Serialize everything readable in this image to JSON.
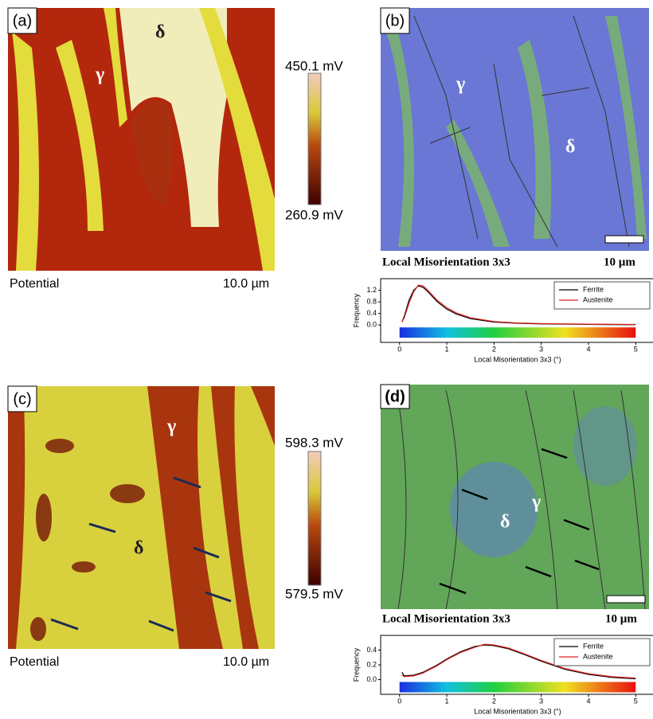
{
  "panels": [
    {
      "label": "(a)",
      "gamma": "γ",
      "delta": "δ",
      "colorbar": {
        "max": "450.1 mV",
        "min": "260.9 mV"
      },
      "caption": "Potential",
      "scale": "10.0 µm"
    },
    {
      "label": "(b)",
      "gamma": "γ",
      "delta": "δ",
      "caption": "Local Misorientation  3x3",
      "scale": "10 µm"
    },
    {
      "label": "(c)",
      "gamma": "γ",
      "delta": "δ",
      "colorbar": {
        "max": "598.3 mV",
        "min": "579.5 mV"
      },
      "caption": "Potential",
      "scale": "10.0 µm"
    },
    {
      "label": "(d)",
      "gamma": "γ",
      "delta": "δ",
      "caption": "Local Misorientation  3x3",
      "scale": "10 µm"
    }
  ],
  "chart_data": [
    {
      "type": "line",
      "ylabel": "Frequency",
      "xlabel": "Local Misorientation 3x3 (°)",
      "x": [
        0.05,
        0.1,
        0.2,
        0.3,
        0.4,
        0.5,
        0.6,
        0.8,
        1.0,
        1.2,
        1.5,
        2,
        2.5,
        3,
        4,
        5
      ],
      "series": [
        {
          "name": "Ferrite",
          "color": "#000000",
          "values": [
            0.1,
            0.3,
            0.85,
            1.2,
            1.35,
            1.3,
            1.15,
            0.8,
            0.55,
            0.38,
            0.22,
            0.1,
            0.06,
            0.04,
            0.02,
            0.01
          ]
        },
        {
          "name": "Austenite",
          "color": "#e02020",
          "values": [
            0.1,
            0.25,
            0.75,
            1.15,
            1.38,
            1.35,
            1.2,
            0.85,
            0.6,
            0.42,
            0.25,
            0.12,
            0.07,
            0.05,
            0.03,
            0.02
          ]
        }
      ],
      "xlim": [
        -0.4,
        5.4
      ],
      "ylim": [
        -0.6,
        1.6
      ],
      "xticks": [
        0,
        1,
        2,
        3,
        4,
        5
      ],
      "yticks": [
        {
          "value": 0,
          "label": "0.0"
        },
        0.4,
        0.8,
        1.2
      ],
      "legend": "upper right"
    },
    {
      "type": "line",
      "ylabel": "Frequency",
      "xlabel": "Local Misorientation 3x3 (°)",
      "x": [
        0.05,
        0.1,
        0.3,
        0.5,
        0.8,
        1,
        1.3,
        1.6,
        1.8,
        2,
        2.3,
        2.6,
        3,
        3.5,
        4,
        4.5,
        5
      ],
      "series": [
        {
          "name": "Ferrite",
          "color": "#000000",
          "values": [
            0.1,
            0.05,
            0.06,
            0.1,
            0.2,
            0.28,
            0.38,
            0.45,
            0.47,
            0.46,
            0.42,
            0.35,
            0.25,
            0.14,
            0.07,
            0.03,
            0.01
          ]
        },
        {
          "name": "Austenite",
          "color": "#e02020",
          "values": [
            0.06,
            0.04,
            0.05,
            0.09,
            0.19,
            0.27,
            0.37,
            0.44,
            0.48,
            0.47,
            0.43,
            0.36,
            0.26,
            0.15,
            0.08,
            0.04,
            0.02
          ]
        }
      ],
      "xlim": [
        -0.4,
        5.4
      ],
      "ylim": [
        -0.2,
        0.6
      ],
      "xticks": [
        0,
        1,
        2,
        3,
        4,
        5
      ],
      "yticks": [
        {
          "value": 0,
          "label": "0.0"
        },
        0.2,
        0.4
      ],
      "legend": "upper right"
    }
  ]
}
